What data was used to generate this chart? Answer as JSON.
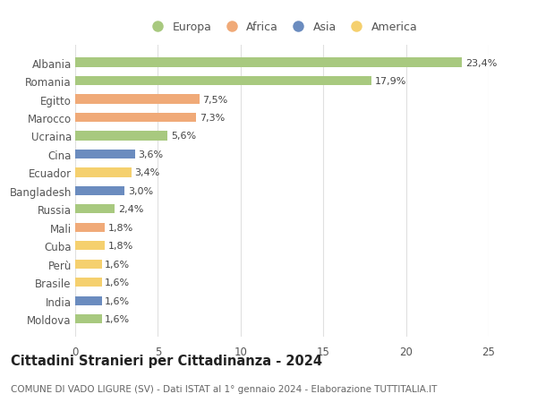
{
  "categories": [
    "Albania",
    "Romania",
    "Egitto",
    "Marocco",
    "Ucraina",
    "Cina",
    "Ecuador",
    "Bangladesh",
    "Russia",
    "Mali",
    "Cuba",
    "Perù",
    "Brasile",
    "India",
    "Moldova"
  ],
  "values": [
    23.4,
    17.9,
    7.5,
    7.3,
    5.6,
    3.6,
    3.4,
    3.0,
    2.4,
    1.8,
    1.8,
    1.6,
    1.6,
    1.6,
    1.6
  ],
  "labels": [
    "23,4%",
    "17,9%",
    "7,5%",
    "7,3%",
    "5,6%",
    "3,6%",
    "3,4%",
    "3,0%",
    "2,4%",
    "1,8%",
    "1,8%",
    "1,6%",
    "1,6%",
    "1,6%",
    "1,6%"
  ],
  "continents": [
    "Europa",
    "Europa",
    "Africa",
    "Africa",
    "Europa",
    "Asia",
    "America",
    "Asia",
    "Europa",
    "Africa",
    "America",
    "America",
    "America",
    "Asia",
    "Europa"
  ],
  "colors": {
    "Europa": "#a8c97f",
    "Africa": "#f0aa78",
    "Asia": "#6b8cbf",
    "America": "#f5d06e"
  },
  "legend_items": [
    "Europa",
    "Africa",
    "Asia",
    "America"
  ],
  "xlim": [
    0,
    25
  ],
  "xticks": [
    0,
    5,
    10,
    15,
    20,
    25
  ],
  "title": "Cittadini Stranieri per Cittadinanza - 2024",
  "subtitle": "COMUNE DI VADO LIGURE (SV) - Dati ISTAT al 1° gennaio 2024 - Elaborazione TUTTITALIA.IT",
  "bg_color": "#ffffff",
  "grid_color": "#e0e0e0",
  "bar_height": 0.5,
  "label_fontsize": 8,
  "ytick_fontsize": 8.5,
  "xtick_fontsize": 8.5,
  "title_fontsize": 10.5,
  "subtitle_fontsize": 7.5
}
